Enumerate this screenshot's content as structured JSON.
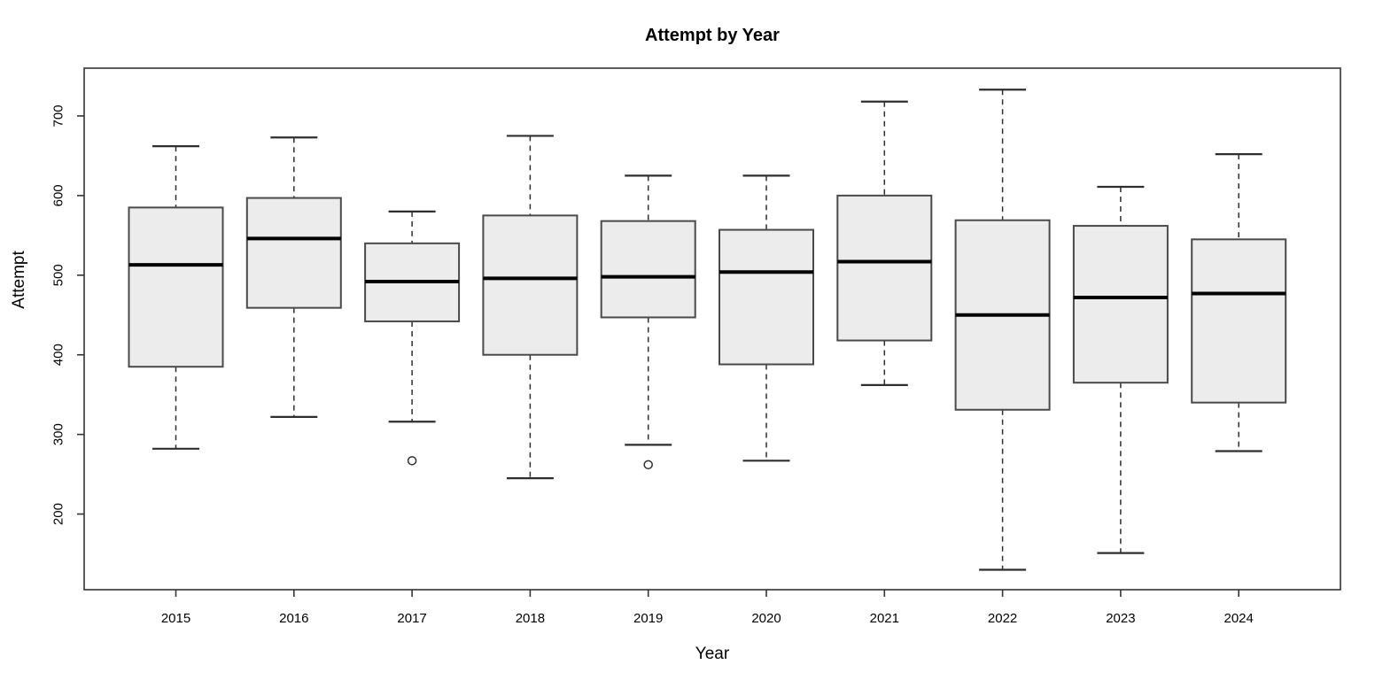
{
  "chart_data": {
    "type": "boxplot",
    "title": "Attempt by Year",
    "xlabel": "Year",
    "ylabel": "Attempt",
    "categories": [
      "2015",
      "2016",
      "2017",
      "2018",
      "2019",
      "2020",
      "2021",
      "2022",
      "2023",
      "2024"
    ],
    "yticks": [
      200,
      300,
      400,
      500,
      600,
      700
    ],
    "ylim": [
      105,
      760
    ],
    "grid": false,
    "legend": "none",
    "series": [
      {
        "category": "2015",
        "low": 282,
        "q1": 385,
        "median": 513,
        "q3": 585,
        "high": 662,
        "outliers": []
      },
      {
        "category": "2016",
        "low": 322,
        "q1": 459,
        "median": 546,
        "q3": 597,
        "high": 673,
        "outliers": []
      },
      {
        "category": "2017",
        "low": 316,
        "q1": 442,
        "median": 492,
        "q3": 540,
        "high": 580,
        "outliers": [
          267
        ]
      },
      {
        "category": "2018",
        "low": 245,
        "q1": 400,
        "median": 496,
        "q3": 575,
        "high": 675,
        "outliers": []
      },
      {
        "category": "2019",
        "low": 287,
        "q1": 447,
        "median": 498,
        "q3": 568,
        "high": 625,
        "outliers": [
          262
        ]
      },
      {
        "category": "2020",
        "low": 267,
        "q1": 388,
        "median": 504,
        "q3": 557,
        "high": 625,
        "outliers": []
      },
      {
        "category": "2021",
        "low": 362,
        "q1": 418,
        "median": 517,
        "q3": 600,
        "high": 718,
        "outliers": []
      },
      {
        "category": "2022",
        "low": 130,
        "q1": 331,
        "median": 450,
        "q3": 569,
        "high": 733,
        "outliers": []
      },
      {
        "category": "2023",
        "low": 151,
        "q1": 365,
        "median": 472,
        "q3": 562,
        "high": 611,
        "outliers": []
      },
      {
        "category": "2024",
        "low": 279,
        "q1": 340,
        "median": 477,
        "q3": 545,
        "high": 652,
        "outliers": []
      }
    ],
    "colors": {
      "background": "#ffffff",
      "box_fill": "#ececec",
      "box_border": "#4a4a4a",
      "median": "#000000",
      "whisker": "#2e2e2e",
      "axis": "#333333",
      "text": "#000000"
    }
  }
}
